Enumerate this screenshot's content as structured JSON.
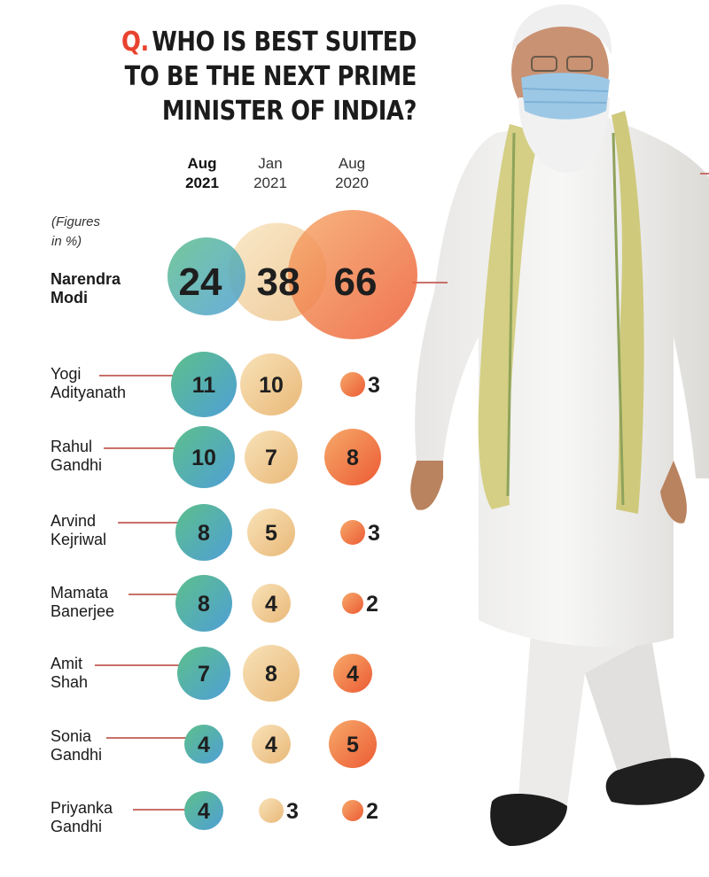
{
  "title": {
    "q": "Q.",
    "lines": [
      "WHO IS BEST SUITED",
      "TO BE THE NEXT PRIME",
      "MINISTER OF INDIA?"
    ]
  },
  "note": "(Figures\nin %)",
  "columns": [
    {
      "month": "Aug",
      "year": "2021",
      "bold": true
    },
    {
      "month": "Jan",
      "year": "2021",
      "bold": false
    },
    {
      "month": "Aug",
      "year": "2020",
      "bold": false
    }
  ],
  "colors": {
    "aug2021": [
      "#5dbf8a",
      "#4f9fd6"
    ],
    "jan2021": [
      "#f8e2b8",
      "#e9b878"
    ],
    "aug2020": [
      "#f6a96a",
      "#ec5b34"
    ],
    "connector": "#c9706a",
    "title_q": "#e8432e"
  },
  "chart_data": {
    "type": "bubble",
    "categories": [
      "Narendra Modi",
      "Yogi Adityanath",
      "Rahul Gandhi",
      "Arvind Kejriwal",
      "Mamata Banerjee",
      "Amit Shah",
      "Sonia Gandhi",
      "Priyanka Gandhi"
    ],
    "series": [
      {
        "name": "Aug 2021",
        "values": [
          24,
          11,
          10,
          8,
          8,
          7,
          4,
          4
        ]
      },
      {
        "name": "Jan 2021",
        "values": [
          38,
          10,
          7,
          5,
          4,
          8,
          4,
          3
        ]
      },
      {
        "name": "Aug 2020",
        "values": [
          66,
          3,
          8,
          3,
          2,
          4,
          5,
          2
        ]
      }
    ],
    "unit": "%"
  },
  "candidates": [
    {
      "first": "Narendra",
      "last": "Modi",
      "bold": true
    },
    {
      "first": "Yogi",
      "last": "Adityanath",
      "bold": false
    },
    {
      "first": "Rahul",
      "last": "Gandhi",
      "bold": false
    },
    {
      "first": "Arvind",
      "last": "Kejriwal",
      "bold": false
    },
    {
      "first": "Mamata",
      "last": "Banerjee",
      "bold": false
    },
    {
      "first": "Amit",
      "last": "Shah",
      "bold": false
    },
    {
      "first": "Sonia",
      "last": "Gandhi",
      "bold": false
    },
    {
      "first": "Priyanka",
      "last": "Gandhi",
      "bold": false
    }
  ],
  "photo": {
    "icon": "narendra-modi-photo"
  }
}
